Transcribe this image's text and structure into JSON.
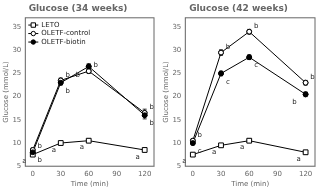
{
  "chart_data": [
    {
      "type": "line",
      "title": "Glucose (34 weeks)",
      "x": [
        0,
        30,
        60,
        120
      ],
      "xlabel": "Time (min)",
      "ylabel": "Glucose (mmol/L)",
      "xlim": [
        -8,
        130
      ],
      "ylim": [
        5,
        37
      ],
      "xticks": [
        0,
        30,
        60,
        90,
        120
      ],
      "yticks": [
        5,
        10,
        15,
        20,
        25,
        30,
        35
      ],
      "grid": false,
      "legend": "upper left",
      "series": [
        {
          "name": "LETO",
          "color": "black",
          "marker": "square_open",
          "line_style": "solid",
          "values": [
            7.5,
            10.0,
            10.5,
            8.5
          ],
          "yerr": [
            0.3,
            0.3,
            0.3,
            0.3
          ],
          "annotations": [
            "a",
            "a",
            "a",
            "a"
          ]
        },
        {
          "name": "OLETF-control",
          "color": "black",
          "marker": "circle_open",
          "line_style": "solid",
          "values": [
            8.5,
            23.5,
            25.5,
            16.5
          ],
          "yerr": [
            0.4,
            0.5,
            0.5,
            0.8
          ],
          "annotations": [
            "b",
            "b",
            "b",
            "b"
          ]
        },
        {
          "name": "OLETF-biotin",
          "color": "black",
          "marker": "circle_filled",
          "line_style": "solid",
          "values": [
            8.0,
            23.0,
            26.5,
            16.0
          ],
          "yerr": [
            0.4,
            0.5,
            0.6,
            0.8
          ],
          "annotations": [
            "b",
            "b",
            "b",
            "b"
          ]
        }
      ]
    },
    {
      "type": "line",
      "title": "Glucose (42 weeks)",
      "x": [
        0,
        30,
        60,
        120
      ],
      "xlabel": "Time (min)",
      "ylabel": "Glucose (mmol/L)",
      "xlim": [
        -8,
        130
      ],
      "ylim": [
        5,
        37
      ],
      "xticks": [
        0,
        30,
        60,
        90,
        120
      ],
      "yticks": [
        5,
        10,
        15,
        20,
        25,
        30,
        35
      ],
      "grid": false,
      "series": [
        {
          "name": "LETO",
          "color": "black",
          "marker": "square_open",
          "line_style": "solid",
          "values": [
            7.5,
            9.5,
            10.5,
            8.0
          ],
          "yerr": [
            0.3,
            0.3,
            0.3,
            0.3
          ],
          "annotations": [
            "a",
            "a",
            "a",
            "a"
          ]
        },
        {
          "name": "OLETF-control",
          "color": "black",
          "marker": "circle_open",
          "line_style": "solid",
          "values": [
            10.5,
            29.5,
            34.0,
            23.0
          ],
          "yerr": [
            0.4,
            0.6,
            0.5,
            0.5
          ],
          "annotations": [
            "b",
            "b",
            "b",
            "b"
          ]
        },
        {
          "name": "OLETF-biotin",
          "color": "black",
          "marker": "circle_filled",
          "line_style": "solid",
          "values": [
            10.0,
            25.0,
            28.5,
            20.5
          ],
          "yerr": [
            0.4,
            0.5,
            0.5,
            0.5
          ],
          "annotations": [
            "c",
            "c",
            "c",
            "b"
          ]
        }
      ]
    }
  ]
}
